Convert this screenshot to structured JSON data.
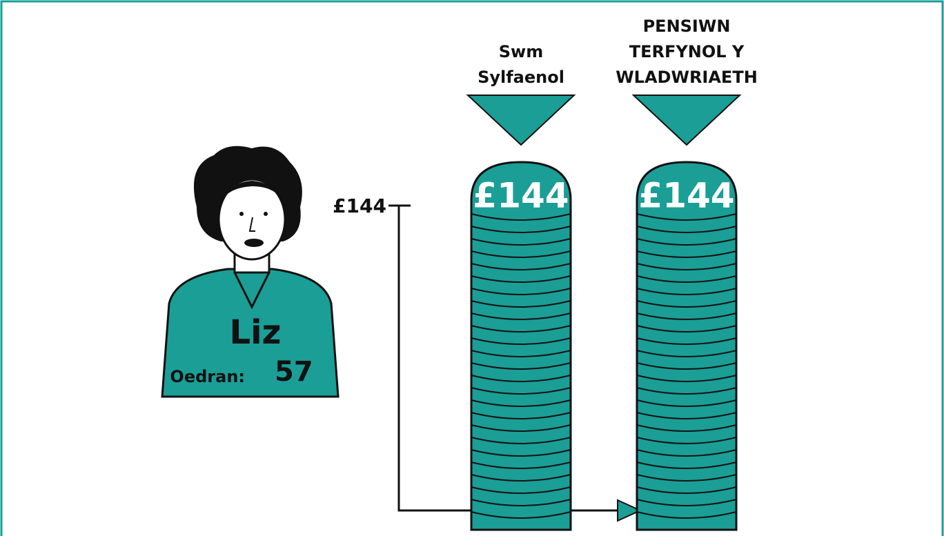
{
  "person": {
    "name": "Liz",
    "age_label": "Oedran:",
    "age": "57"
  },
  "axis_label": "£144",
  "columns": [
    {
      "heading": [
        "Swm",
        "Sylfaenol"
      ],
      "amount": "£144"
    },
    {
      "heading": [
        "PENSIWN",
        "TERFYNOL Y",
        "WLADWRIAETH"
      ],
      "amount": "£144"
    }
  ]
}
